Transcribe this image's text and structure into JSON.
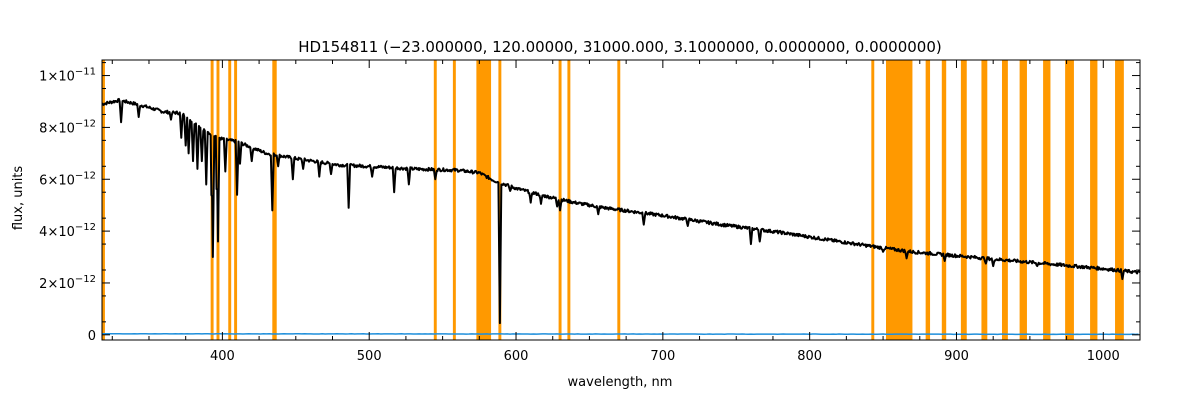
{
  "chart_data": {
    "type": "line",
    "title": "HD154811   (−23.000000, 120.00000, 31000.000, 3.1000000, 0.0000000, 0.0000000)",
    "xlabel": "wavelength, nm",
    "ylabel": "flux, units",
    "xlim": [
      318,
      1025
    ],
    "ylim": [
      -2e-13,
      1.06e-11
    ],
    "x_ticks": [
      400,
      500,
      600,
      700,
      800,
      900,
      1000
    ],
    "x_tick_labels": [
      "400",
      "500",
      "600",
      "700",
      "800",
      "900",
      "1000"
    ],
    "y_ticks": [
      0,
      2e-12,
      4e-12,
      6e-12,
      8e-12,
      1e-11
    ],
    "y_tick_labels": [
      {
        "mant": "0",
        "exp": ""
      },
      {
        "mant": "2×10",
        "exp": "−12"
      },
      {
        "mant": "4×10",
        "exp": "−12"
      },
      {
        "mant": "6×10",
        "exp": "−12"
      },
      {
        "mant": "8×10",
        "exp": "−12"
      },
      {
        "mant": "1×10",
        "exp": "−11"
      }
    ],
    "grid": false,
    "masked_bands_nm": [
      [
        318,
        320
      ],
      [
        392,
        394
      ],
      [
        396,
        398
      ],
      [
        404,
        406
      ],
      [
        408,
        410
      ],
      [
        434,
        437
      ],
      [
        544,
        546
      ],
      [
        557,
        559
      ],
      [
        573,
        583
      ],
      [
        588,
        590
      ],
      [
        629,
        631
      ],
      [
        635,
        637
      ],
      [
        669,
        671
      ],
      [
        842,
        844
      ],
      [
        852,
        870
      ],
      [
        879,
        882
      ],
      [
        890,
        893
      ],
      [
        903,
        907
      ],
      [
        917,
        921
      ],
      [
        931,
        935
      ],
      [
        943,
        948
      ],
      [
        959,
        964
      ],
      [
        974,
        980
      ],
      [
        991,
        996
      ],
      [
        1008,
        1014
      ]
    ],
    "mask_color": "#ff9900",
    "series": [
      {
        "color": "#000000",
        "continuum": [
          [
            318,
            8.9e-12
          ],
          [
            330,
            9.05e-12
          ],
          [
            345,
            8.85e-12
          ],
          [
            360,
            8.6e-12
          ],
          [
            372,
            8.55e-12
          ],
          [
            380,
            8.2e-12
          ],
          [
            390,
            7.8e-12
          ],
          [
            400,
            7.55e-12
          ],
          [
            410,
            7.45e-12
          ],
          [
            430,
            7e-12
          ],
          [
            450,
            6.8e-12
          ],
          [
            480,
            6.55e-12
          ],
          [
            500,
            6.5e-12
          ],
          [
            530,
            6.4e-12
          ],
          [
            560,
            6.35e-12
          ],
          [
            575,
            6.25e-12
          ],
          [
            585,
            5.95e-12
          ],
          [
            600,
            5.65e-12
          ],
          [
            620,
            5.35e-12
          ],
          [
            640,
            5.1e-12
          ],
          [
            660,
            4.9e-12
          ],
          [
            700,
            4.6e-12
          ],
          [
            740,
            4.25e-12
          ],
          [
            780,
            3.95e-12
          ],
          [
            820,
            3.6e-12
          ],
          [
            850,
            3.35e-12
          ],
          [
            870,
            3.2e-12
          ],
          [
            900,
            3.05e-12
          ],
          [
            940,
            2.85e-12
          ],
          [
            980,
            2.65e-12
          ],
          [
            1000,
            2.55e-12
          ],
          [
            1025,
            2.4e-12
          ]
        ],
        "absorption_lines": [
          [
            331,
            8.2e-12
          ],
          [
            343,
            8.4e-12
          ],
          [
            365,
            8.3e-12
          ],
          [
            372,
            7.6e-12
          ],
          [
            375,
            7.3e-12
          ],
          [
            377,
            7e-12
          ],
          [
            380,
            6.7e-12
          ],
          [
            383,
            6.4e-12
          ],
          [
            386,
            6.7e-12
          ],
          [
            389,
            5.8e-12
          ],
          [
            393.4,
            3e-12
          ],
          [
            396.8,
            3.6e-12
          ],
          [
            402,
            6.3e-12
          ],
          [
            410,
            5.4e-12
          ],
          [
            412,
            6.6e-12
          ],
          [
            420,
            6.7e-12
          ],
          [
            434,
            4.8e-12
          ],
          [
            438,
            6.5e-12
          ],
          [
            448,
            6e-12
          ],
          [
            455,
            6.4e-12
          ],
          [
            466,
            6.1e-12
          ],
          [
            474,
            6.2e-12
          ],
          [
            486,
            4.9e-12
          ],
          [
            502,
            6.1e-12
          ],
          [
            517,
            5.5e-12
          ],
          [
            527,
            5.8e-12
          ],
          [
            545,
            6e-12
          ],
          [
            589,
            4.5e-13
          ],
          [
            596,
            5.55e-12
          ],
          [
            610,
            5.1e-12
          ],
          [
            617,
            5.05e-12
          ],
          [
            628,
            4.95e-12
          ],
          [
            630,
            4.8e-12
          ],
          [
            656,
            4.65e-12
          ],
          [
            687,
            4.25e-12
          ],
          [
            717,
            4.2e-12
          ],
          [
            760,
            3.5e-12
          ],
          [
            766,
            3.6e-12
          ],
          [
            850,
            3.2e-12
          ],
          [
            866,
            2.95e-12
          ],
          [
            892,
            2.85e-12
          ],
          [
            920,
            2.75e-12
          ],
          [
            925,
            2.65e-12
          ],
          [
            955,
            2.65e-12
          ],
          [
            1013,
            2.15e-12
          ]
        ]
      },
      {
        "color": "#1f8fdb",
        "continuum": [
          [
            318,
            4e-14
          ],
          [
            1025,
            2e-14
          ]
        ]
      }
    ]
  }
}
